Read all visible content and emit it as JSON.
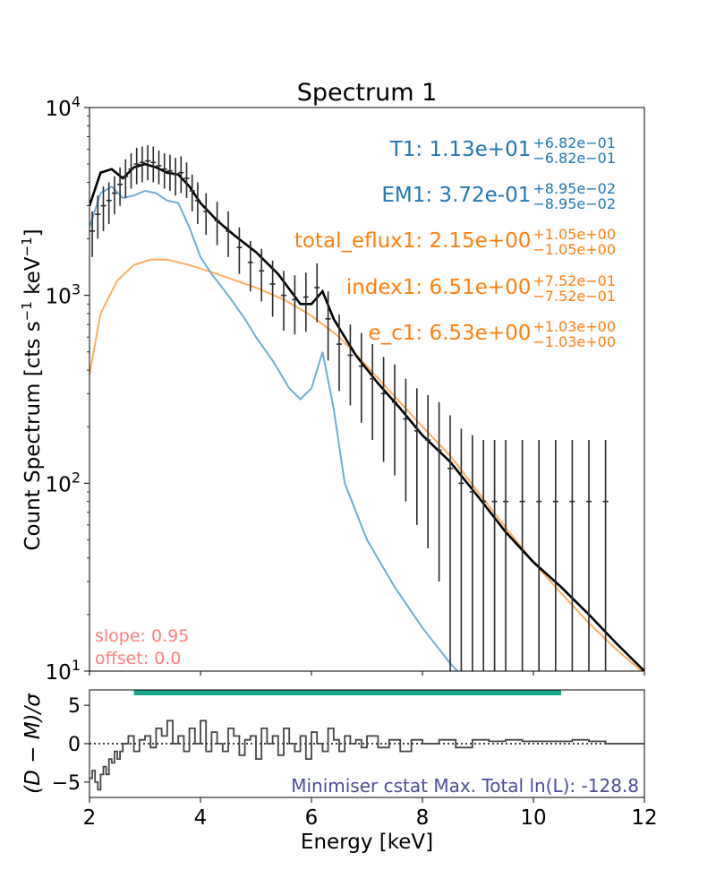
{
  "title": "Spectrum 1",
  "colors": {
    "data": "#2b2b2b",
    "total_model": "#000000",
    "thermal": "#6baed6",
    "thermal_text": "#1f77b4",
    "nonthermal": "#fdae61",
    "nonthermal_text": "#ff7f0e",
    "gain": "#ff7f7f",
    "range_bar": "#1aa88c",
    "stat_text": "#4b4b9b"
  },
  "chart_data": [
    {
      "type": "line",
      "panel": "spectrum",
      "yscale": "log",
      "xlim": [
        2,
        12
      ],
      "ylim": [
        10,
        10000
      ],
      "ylabel": "Count Spectrum [cts s$^{-1}$ keV$^{-1}$]",
      "ylabel_parts": {
        "main": "Count Spectrum [cts s",
        "exp1": "−1",
        "mid": " keV",
        "exp2": "−1",
        "end": "]"
      },
      "yticks": [
        {
          "value": 10,
          "base": "10",
          "exp": "1"
        },
        {
          "value": 100,
          "base": "10",
          "exp": "2"
        },
        {
          "value": 1000,
          "base": "10",
          "exp": "3"
        },
        {
          "value": 10000,
          "base": "10",
          "exp": "4"
        }
      ],
      "series": [
        {
          "name": "total model",
          "color_key": "total_model",
          "x": [
            2.0,
            2.2,
            2.4,
            2.6,
            2.8,
            3.0,
            3.2,
            3.4,
            3.6,
            3.8,
            4.0,
            4.3,
            4.6,
            5.0,
            5.4,
            5.8,
            6.0,
            6.2,
            6.4,
            6.8,
            7.2,
            7.6,
            8.0,
            8.5,
            9.0,
            9.5,
            10.0,
            10.5,
            11.0,
            11.5,
            12.0
          ],
          "y": [
            3000,
            4500,
            4700,
            4200,
            4800,
            5000,
            4800,
            4500,
            4400,
            3800,
            3100,
            2500,
            2100,
            1700,
            1300,
            900,
            900,
            1050,
            750,
            480,
            340,
            250,
            180,
            130,
            85,
            55,
            38,
            28,
            20,
            14,
            10
          ]
        },
        {
          "name": "thermal component",
          "color_key": "thermal",
          "x": [
            2.0,
            2.2,
            2.4,
            2.6,
            2.8,
            3.0,
            3.2,
            3.4,
            3.6,
            3.8,
            4.0,
            4.2,
            4.5,
            4.8,
            5.0,
            5.3,
            5.6,
            5.8,
            6.0,
            6.2,
            6.4,
            6.6,
            7.0,
            7.5,
            8.0,
            8.5,
            8.7
          ],
          "y": [
            2300,
            3500,
            3800,
            3300,
            3400,
            3600,
            3500,
            3200,
            3100,
            2300,
            1600,
            1300,
            1000,
            750,
            600,
            450,
            320,
            280,
            320,
            500,
            250,
            100,
            50,
            28,
            17,
            11,
            9.5
          ]
        },
        {
          "name": "non-thermal component",
          "color_key": "nonthermal",
          "x": [
            2.0,
            2.2,
            2.5,
            2.8,
            3.1,
            3.4,
            3.8,
            4.3,
            5.0,
            5.5,
            6.0,
            6.5,
            7.0,
            7.5,
            8.0,
            8.5,
            9.0,
            9.5,
            10.0,
            10.5,
            11.0,
            11.5,
            12.0
          ],
          "y": [
            380,
            800,
            1200,
            1450,
            1550,
            1550,
            1450,
            1300,
            1100,
            950,
            780,
            600,
            420,
            290,
            200,
            140,
            90,
            58,
            38,
            26,
            18,
            13,
            9.7
          ]
        }
      ],
      "data_points": {
        "name": "observed counts",
        "color_key": "data",
        "x": [
          2.05,
          2.15,
          2.25,
          2.35,
          2.45,
          2.55,
          2.65,
          2.75,
          2.85,
          2.95,
          3.05,
          3.15,
          3.25,
          3.35,
          3.45,
          3.55,
          3.65,
          3.75,
          3.85,
          3.95,
          4.1,
          4.3,
          4.5,
          4.7,
          4.9,
          5.1,
          5.3,
          5.5,
          5.7,
          5.9,
          6.1,
          6.3,
          6.5,
          6.7,
          6.9,
          7.1,
          7.3,
          7.5,
          7.7,
          7.9,
          8.1,
          8.3,
          8.5,
          8.7,
          8.9,
          9.1,
          9.3,
          9.5,
          9.8,
          10.1,
          10.4,
          10.7,
          11.0,
          11.3
        ],
        "y": [
          2200,
          2700,
          3000,
          3200,
          3500,
          3900,
          4300,
          4700,
          5000,
          5100,
          5200,
          5100,
          4900,
          4700,
          4600,
          4400,
          4500,
          4200,
          3600,
          3200,
          2800,
          2500,
          2200,
          1800,
          1500,
          1350,
          1150,
          1000,
          950,
          980,
          1100,
          750,
          550,
          480,
          420,
          360,
          300,
          270,
          220,
          190,
          170,
          150,
          120,
          100,
          90,
          80,
          80,
          80,
          80,
          80,
          80,
          80,
          80,
          80
        ],
        "yerr_lo": [
          600,
          700,
          800,
          800,
          800,
          900,
          1000,
          1000,
          1100,
          1100,
          1100,
          1100,
          1000,
          1000,
          1000,
          1000,
          1000,
          900,
          800,
          800,
          700,
          650,
          600,
          500,
          450,
          420,
          380,
          350,
          330,
          340,
          380,
          300,
          240,
          220,
          210,
          190,
          170,
          160,
          140,
          130,
          125,
          120,
          110,
          95,
          85,
          75,
          75,
          75,
          75,
          75,
          75,
          75,
          75,
          75
        ],
        "yerr_hi": [
          600,
          700,
          800,
          800,
          800,
          900,
          1000,
          1000,
          1100,
          1100,
          1100,
          1100,
          1000,
          1000,
          1000,
          1000,
          1000,
          900,
          800,
          800,
          700,
          650,
          600,
          500,
          450,
          420,
          380,
          350,
          330,
          340,
          380,
          300,
          240,
          220,
          210,
          190,
          170,
          160,
          140,
          130,
          125,
          120,
          110,
          95,
          90,
          90,
          90,
          90,
          90,
          90,
          90,
          90,
          90,
          90
        ]
      },
      "annotations": [
        {
          "name": "T1",
          "label": "T1: 1.13e+01",
          "sup": "+6.82e−01",
          "sub": "−6.82e−01",
          "color_key": "thermal_text"
        },
        {
          "name": "EM1",
          "label": "EM1: 3.72e-01",
          "sup": "+8.95e−02",
          "sub": "−8.95e−02",
          "color_key": "thermal_text"
        },
        {
          "name": "total_eflux1",
          "label": "total_eflux1: 2.15e+00",
          "sup": "+1.05e+00",
          "sub": "−1.05e+00",
          "color_key": "nonthermal_text"
        },
        {
          "name": "index1",
          "label": "index1: 6.51e+00",
          "sup": "+7.52e−01",
          "sub": "−7.52e−01",
          "color_key": "nonthermal_text"
        },
        {
          "name": "e_c1",
          "label": "e_c1: 6.53e+00",
          "sup": "+1.03e+00",
          "sub": "−1.03e+00",
          "color_key": "nonthermal_text"
        }
      ],
      "gain_text": [
        "slope: 0.95",
        "offset: 0.0"
      ]
    },
    {
      "type": "line",
      "panel": "residuals",
      "xlim": [
        2,
        12
      ],
      "ylim": [
        -7,
        7
      ],
      "xlabel": "Energy [keV]",
      "ylabel": "(D − M)/σ",
      "xticks": [
        2,
        4,
        6,
        8,
        10,
        12
      ],
      "yticks": [
        -5,
        0,
        5
      ],
      "fit_range": [
        2.8,
        10.5
      ],
      "stat_text": "Minimiser cstat Max. Total ln(L): -128.8",
      "residuals": {
        "x": [
          2.0,
          2.05,
          2.1,
          2.15,
          2.2,
          2.25,
          2.3,
          2.35,
          2.4,
          2.45,
          2.5,
          2.55,
          2.6,
          2.7,
          2.8,
          2.9,
          3.0,
          3.1,
          3.2,
          3.3,
          3.4,
          3.5,
          3.6,
          3.7,
          3.8,
          3.9,
          4.0,
          4.1,
          4.2,
          4.3,
          4.4,
          4.5,
          4.6,
          4.7,
          4.8,
          4.9,
          5.0,
          5.1,
          5.2,
          5.3,
          5.4,
          5.5,
          5.6,
          5.7,
          5.8,
          5.9,
          6.0,
          6.1,
          6.2,
          6.3,
          6.4,
          6.5,
          6.6,
          6.7,
          6.8,
          6.9,
          7.0,
          7.2,
          7.4,
          7.6,
          7.8,
          8.0,
          8.3,
          8.6,
          8.9,
          9.2,
          9.5,
          9.8,
          10.1,
          10.4,
          10.7,
          11.0,
          11.3,
          12.0
        ],
        "y": [
          -4.5,
          -3.5,
          -5,
          -6,
          -4,
          -3,
          -4,
          -2,
          -2.5,
          -1,
          -2,
          -1,
          0,
          1,
          -1,
          0.5,
          1,
          -0.5,
          2,
          1,
          3,
          0,
          1,
          -1,
          2,
          0,
          3,
          -1,
          1.5,
          0,
          -1,
          2,
          1,
          -1.5,
          0.5,
          1,
          -2,
          2,
          0,
          1,
          -1.5,
          2,
          0,
          -1,
          1,
          -2,
          1.5,
          0,
          -1,
          2,
          0.5,
          -1,
          1,
          0,
          0.5,
          -0.5,
          1,
          -0.5,
          0.5,
          -1,
          0.5,
          0,
          0.5,
          -0.5,
          0.5,
          0.3,
          0.5,
          0.3,
          0.3,
          0.3,
          0.5,
          0.3,
          0,
          0
        ]
      }
    }
  ]
}
